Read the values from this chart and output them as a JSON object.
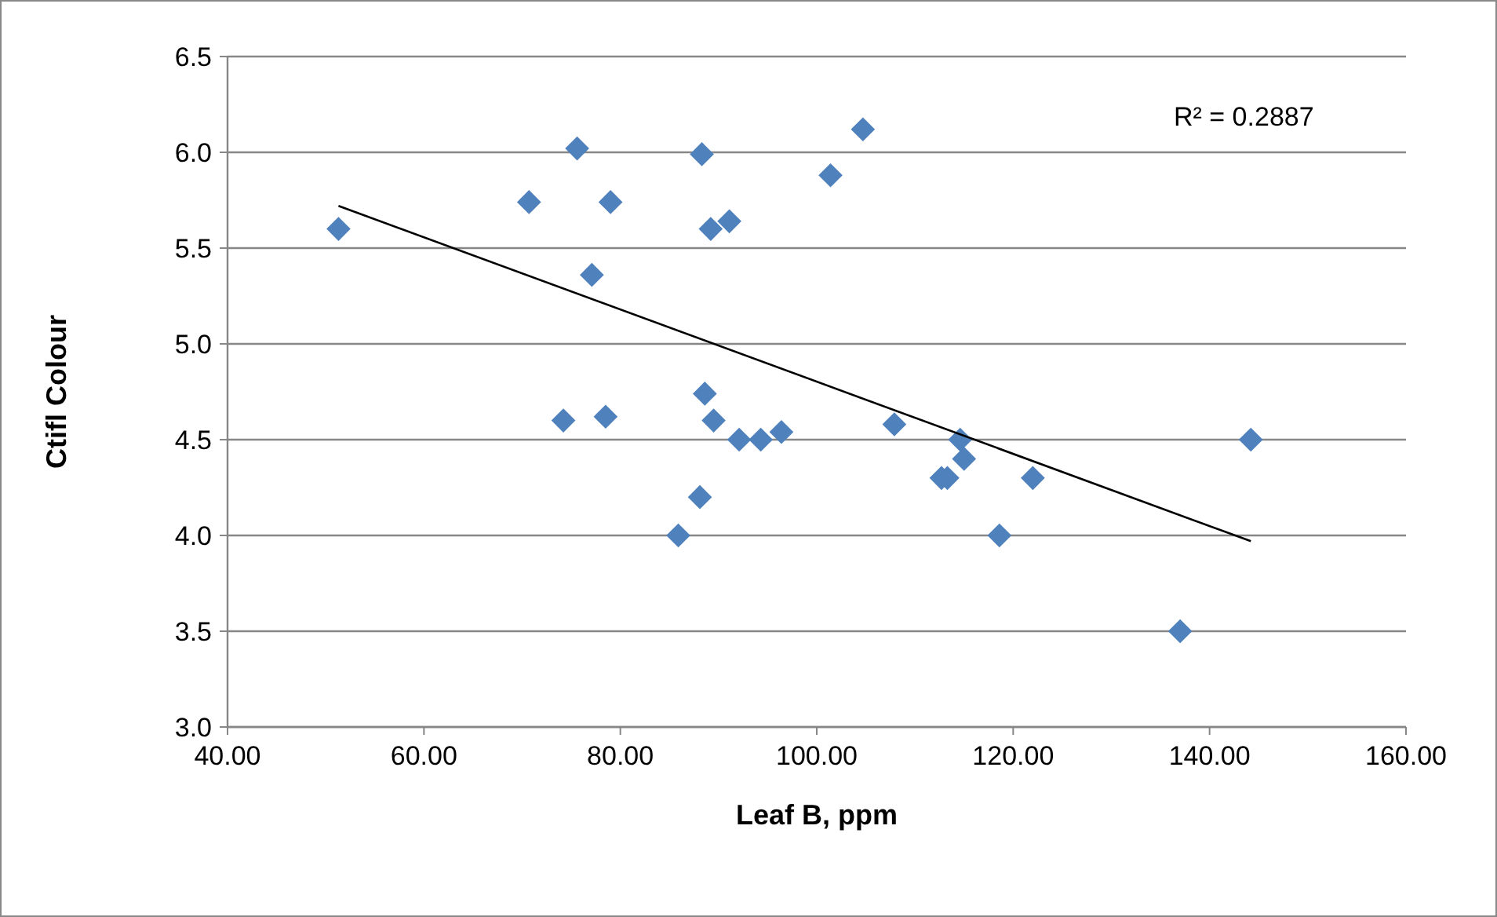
{
  "chart_data": {
    "type": "scatter",
    "xlabel": "Leaf B, ppm",
    "ylabel": "Ctifl Colour",
    "annotations": [
      "R² = 0.2887"
    ],
    "xlim": [
      40,
      160
    ],
    "xticks": [
      {
        "value": 40,
        "label": "40.00"
      },
      {
        "value": 60,
        "label": "60.00"
      },
      {
        "value": 80,
        "label": "80.00"
      },
      {
        "value": 100,
        "label": "100.00"
      },
      {
        "value": 120,
        "label": "120.00"
      },
      {
        "value": 140,
        "label": "140.00"
      },
      {
        "value": 160,
        "label": "160.00"
      }
    ],
    "ylim": [
      3,
      6.5
    ],
    "yticks": [
      {
        "value": 3,
        "label": "3.0"
      },
      {
        "value": 3.5,
        "label": "3.5"
      },
      {
        "value": 4,
        "label": "4.0"
      },
      {
        "value": 4.5,
        "label": "4.5"
      },
      {
        "value": 5,
        "label": "5.0"
      },
      {
        "value": 5.5,
        "label": "5.5"
      },
      {
        "value": 6,
        "label": "6.0"
      },
      {
        "value": 6.5,
        "label": "6.5"
      }
    ],
    "grid": "y",
    "marker": "diamond",
    "series": [
      {
        "color": "#4f81bd",
        "x": [
          51.3,
          70.7,
          75.6,
          79.0,
          77.1,
          74.2,
          78.5,
          88.3,
          89.2,
          91.1,
          101.4,
          104.7,
          88.6,
          89.5,
          92.1,
          94.3,
          96.4,
          88.1,
          85.9,
          107.9,
          114.6,
          112.7,
          113.3,
          115.0,
          118.6,
          122.0,
          137.0,
          144.2
        ],
        "values": [
          5.6,
          5.74,
          6.02,
          5.74,
          5.36,
          4.6,
          4.62,
          5.99,
          5.6,
          5.64,
          5.88,
          6.12,
          4.74,
          4.6,
          4.5,
          4.5,
          4.54,
          4.2,
          4.0,
          4.58,
          4.5,
          4.3,
          4.3,
          4.4,
          4.0,
          4.3,
          3.5,
          4.5
        ]
      },
      {
        "type": "line",
        "color": "#000000",
        "marker": "none",
        "line_style": "solid",
        "x": [
          51.3,
          144.2
        ],
        "values": [
          5.72,
          3.97
        ]
      }
    ]
  }
}
